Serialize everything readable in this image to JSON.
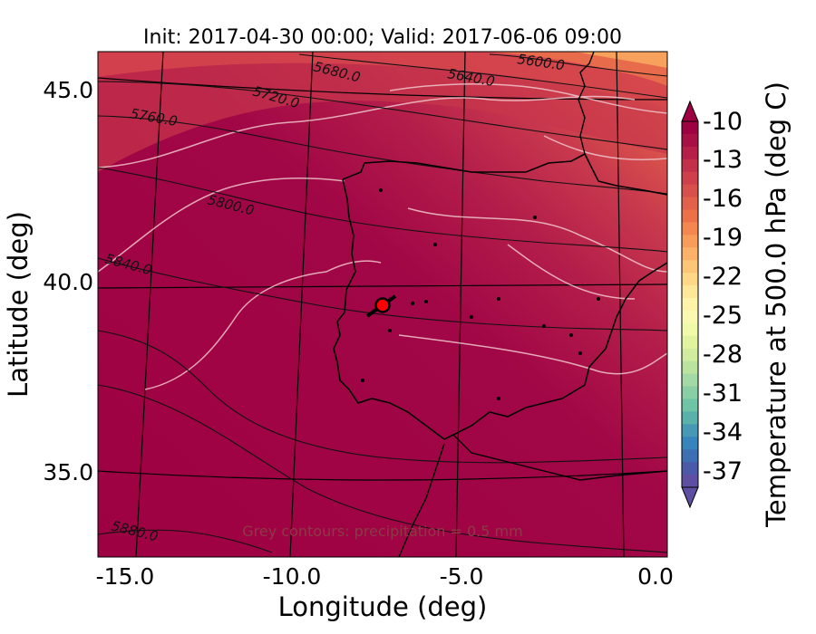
{
  "title": "Init: 2017-04-30 00:00; Valid: 2017-06-06 09:00",
  "xlabel": "Longitude (deg)",
  "ylabel": "Latitude (deg)",
  "xticks": [
    "-15.0",
    "-10.0",
    "-5.0",
    "0.0"
  ],
  "yticks": [
    "45.0",
    "40.0",
    "35.0"
  ],
  "colorbar": {
    "label": "Temperature at 500.0 hPa (deg C)",
    "ticks": [
      "-10",
      "-13",
      "-16",
      "-19",
      "-22",
      "-25",
      "-28",
      "-31",
      "-34",
      "-37"
    ],
    "colors_warm_to_cold": [
      "#9e0142",
      "#a80f45",
      "#b51f48",
      "#c2304a",
      "#cf404d",
      "#d8504b",
      "#e2614a",
      "#ec7148",
      "#f3874f",
      "#f89c5a",
      "#fbb167",
      "#fdc576",
      "#fed787",
      "#fee798",
      "#fff3aa",
      "#fbf8b1",
      "#f1f9aa",
      "#e2f3a0",
      "#d0ec9c",
      "#bae49d",
      "#a2d9a4",
      "#88cfa5",
      "#6fc4a5",
      "#58b1ab",
      "#4599b4",
      "#3585bc",
      "#3d6fb3",
      "#4b5aa8",
      "#5e4fa2"
    ],
    "extend": "both"
  },
  "contour_labels": [
    "5600.0",
    "5640.0",
    "5680.0",
    "5720.0",
    "5760.0",
    "5800.0",
    "5840.0",
    "5880.0"
  ],
  "note": "Grey contours: precipitation = 0.5 mm",
  "marker": {
    "lon": -7.7,
    "lat": 39.4,
    "color": "#ff0000"
  },
  "map_extent": {
    "lon": [
      -16,
      0.3
    ],
    "lat": [
      32.7,
      46.3
    ]
  }
}
